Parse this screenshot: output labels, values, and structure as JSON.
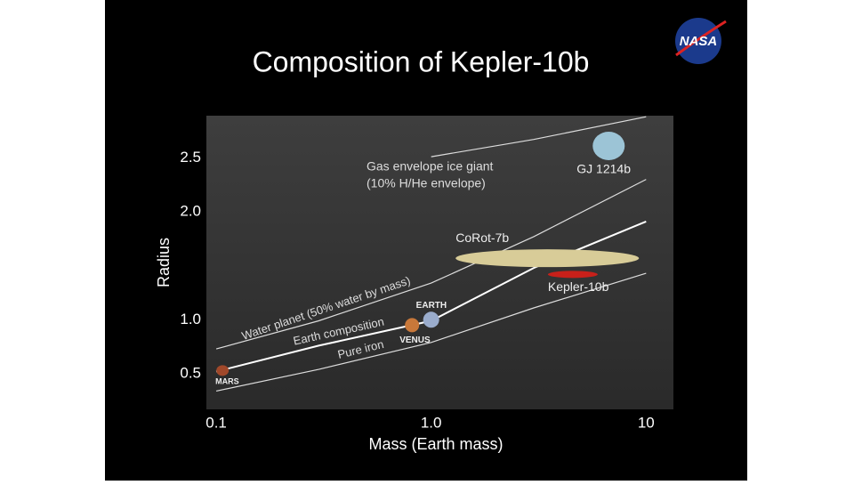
{
  "header": {
    "title": "Composition of Kepler-10b",
    "logo": "NASA"
  },
  "chart_data": {
    "type": "line",
    "xlabel": "Mass (Earth mass)",
    "ylabel": "Radius",
    "xscale": "log",
    "xlim": [
      0.09,
      13.4
    ],
    "ylim": [
      0.17,
      2.89
    ],
    "xticks": [
      0.1,
      {
        "value": 1,
        "label": "1.0"
      },
      10
    ],
    "yticks": [
      0.5,
      {
        "value": 1,
        "label": "1.0"
      },
      {
        "value": 2,
        "label": "2.0"
      },
      2.5
    ],
    "x": [
      0.1,
      0.3,
      1,
      3,
      10
    ],
    "series": [
      {
        "name": "Gas envelope ice giant",
        "note": "(10% H/He envelope)",
        "color": "#dddddd",
        "values": [
          null,
          null,
          2.51,
          2.67,
          2.88
        ]
      },
      {
        "name": "Water planet (50% water by mass)",
        "color": "#dddddd",
        "values": [
          0.73,
          0.99,
          1.34,
          1.77,
          2.3
        ]
      },
      {
        "name": "Earth composition",
        "color": "#ffffff",
        "values": [
          0.52,
          0.76,
          0.99,
          1.48,
          1.91
        ]
      },
      {
        "name": "Pure iron",
        "color": "#dddddd",
        "values": [
          0.34,
          0.54,
          0.79,
          1.11,
          1.43
        ]
      }
    ],
    "points": [
      {
        "name": "MARS",
        "x": 0.107,
        "y": 0.53,
        "color": "#a0482a"
      },
      {
        "name": "VENUS",
        "x": 0.815,
        "y": 0.95,
        "color": "#c8783a"
      },
      {
        "name": "EARTH",
        "x": 1,
        "y": 1.0,
        "color": "#9aaccc"
      },
      {
        "name": "Kepler-10b",
        "x": 4.56,
        "y": 1.42,
        "color": "#c8201a"
      },
      {
        "name": "CoRot-7b",
        "x": 3.47,
        "y": 1.57,
        "color": "#d8cc98"
      },
      {
        "name": "GJ 1214b",
        "x": 6.7,
        "y": 2.61,
        "color": "#9cc4d6"
      }
    ]
  }
}
